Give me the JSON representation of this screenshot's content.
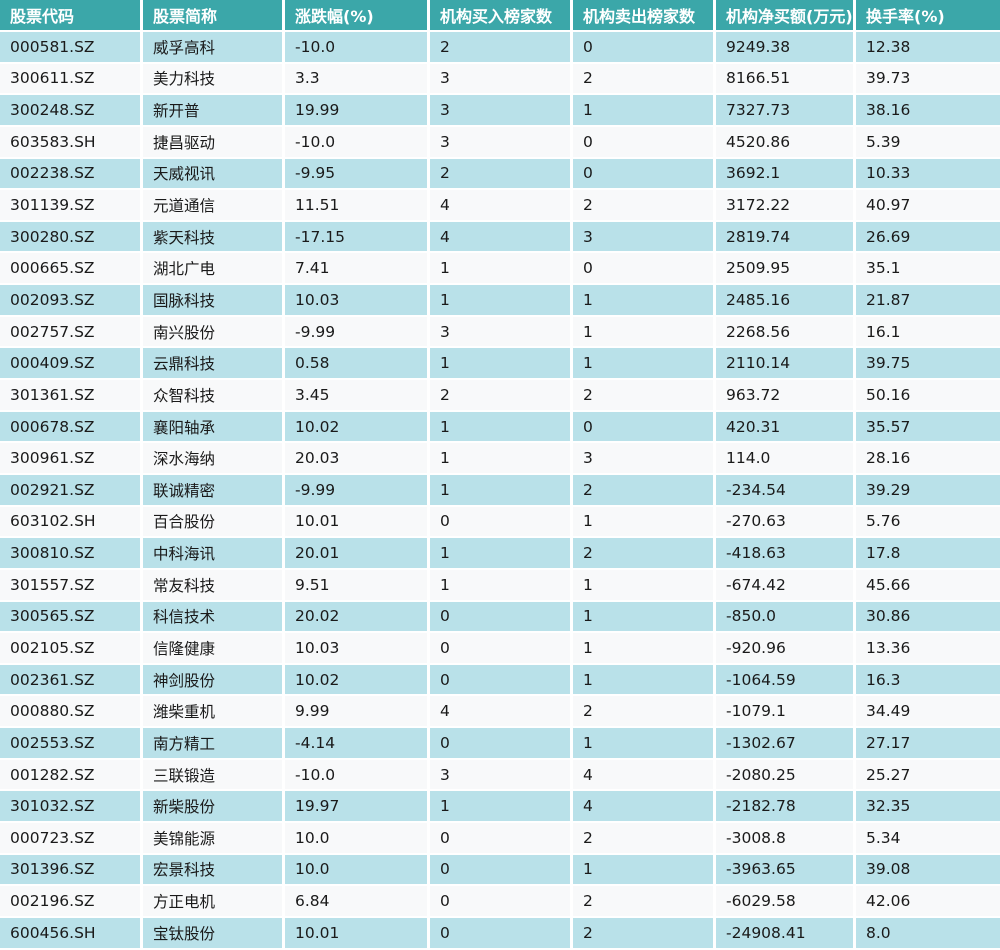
{
  "colors": {
    "header_bg": "#3ba7a9",
    "header_text": "#ffffff",
    "row_alt_bg": "#b9e1e9",
    "row_bg": "#f8f9fa",
    "body_text": "#1a1a1a",
    "grid": "#ffffff"
  },
  "chart_data": {
    "type": "table",
    "columns": [
      "股票代码",
      "股票简称",
      "涨跌幅(%)",
      "机构买入榜家数",
      "机构卖出榜家数",
      "机构净买额(万元)",
      "换手率(%)"
    ],
    "rows": [
      [
        "000581.SZ",
        "威孚高科",
        "-10.0",
        "2",
        "0",
        "9249.38",
        "12.38"
      ],
      [
        "300611.SZ",
        "美力科技",
        "3.3",
        "3",
        "2",
        "8166.51",
        "39.73"
      ],
      [
        "300248.SZ",
        "新开普",
        "19.99",
        "3",
        "1",
        "7327.73",
        "38.16"
      ],
      [
        "603583.SH",
        "捷昌驱动",
        "-10.0",
        "3",
        "0",
        "4520.86",
        "5.39"
      ],
      [
        "002238.SZ",
        "天威视讯",
        "-9.95",
        "2",
        "0",
        "3692.1",
        "10.33"
      ],
      [
        "301139.SZ",
        "元道通信",
        "11.51",
        "4",
        "2",
        "3172.22",
        "40.97"
      ],
      [
        "300280.SZ",
        "紫天科技",
        "-17.15",
        "4",
        "3",
        "2819.74",
        "26.69"
      ],
      [
        "000665.SZ",
        "湖北广电",
        "7.41",
        "1",
        "0",
        "2509.95",
        "35.1"
      ],
      [
        "002093.SZ",
        "国脉科技",
        "10.03",
        "1",
        "1",
        "2485.16",
        "21.87"
      ],
      [
        "002757.SZ",
        "南兴股份",
        "-9.99",
        "3",
        "1",
        "2268.56",
        "16.1"
      ],
      [
        "000409.SZ",
        "云鼎科技",
        "0.58",
        "1",
        "1",
        "2110.14",
        "39.75"
      ],
      [
        "301361.SZ",
        "众智科技",
        "3.45",
        "2",
        "2",
        "963.72",
        "50.16"
      ],
      [
        "000678.SZ",
        "襄阳轴承",
        "10.02",
        "1",
        "0",
        "420.31",
        "35.57"
      ],
      [
        "300961.SZ",
        "深水海纳",
        "20.03",
        "1",
        "3",
        "114.0",
        "28.16"
      ],
      [
        "002921.SZ",
        "联诚精密",
        "-9.99",
        "1",
        "2",
        "-234.54",
        "39.29"
      ],
      [
        "603102.SH",
        "百合股份",
        "10.01",
        "0",
        "1",
        "-270.63",
        "5.76"
      ],
      [
        "300810.SZ",
        "中科海讯",
        "20.01",
        "1",
        "2",
        "-418.63",
        "17.8"
      ],
      [
        "301557.SZ",
        "常友科技",
        "9.51",
        "1",
        "1",
        "-674.42",
        "45.66"
      ],
      [
        "300565.SZ",
        "科信技术",
        "20.02",
        "0",
        "1",
        "-850.0",
        "30.86"
      ],
      [
        "002105.SZ",
        "信隆健康",
        "10.03",
        "0",
        "1",
        "-920.96",
        "13.36"
      ],
      [
        "002361.SZ",
        "神剑股份",
        "10.02",
        "0",
        "1",
        "-1064.59",
        "16.3"
      ],
      [
        "000880.SZ",
        "潍柴重机",
        "9.99",
        "4",
        "2",
        "-1079.1",
        "34.49"
      ],
      [
        "002553.SZ",
        "南方精工",
        "-4.14",
        "0",
        "1",
        "-1302.67",
        "27.17"
      ],
      [
        "001282.SZ",
        "三联锻造",
        "-10.0",
        "3",
        "4",
        "-2080.25",
        "25.27"
      ],
      [
        "301032.SZ",
        "新柴股份",
        "19.97",
        "1",
        "4",
        "-2182.78",
        "32.35"
      ],
      [
        "000723.SZ",
        "美锦能源",
        "10.0",
        "0",
        "2",
        "-3008.8",
        "5.34"
      ],
      [
        "301396.SZ",
        "宏景科技",
        "10.0",
        "0",
        "1",
        "-3963.65",
        "39.08"
      ],
      [
        "002196.SZ",
        "方正电机",
        "6.84",
        "0",
        "2",
        "-6029.58",
        "42.06"
      ],
      [
        "600456.SH",
        "宝钛股份",
        "10.01",
        "0",
        "2",
        "-24908.41",
        "8.0"
      ]
    ],
    "title": "",
    "column_keys": [
      "code",
      "name",
      "change_pct",
      "inst_buy_count",
      "inst_sell_count",
      "inst_net_buy_wan",
      "turnover_pct"
    ]
  }
}
